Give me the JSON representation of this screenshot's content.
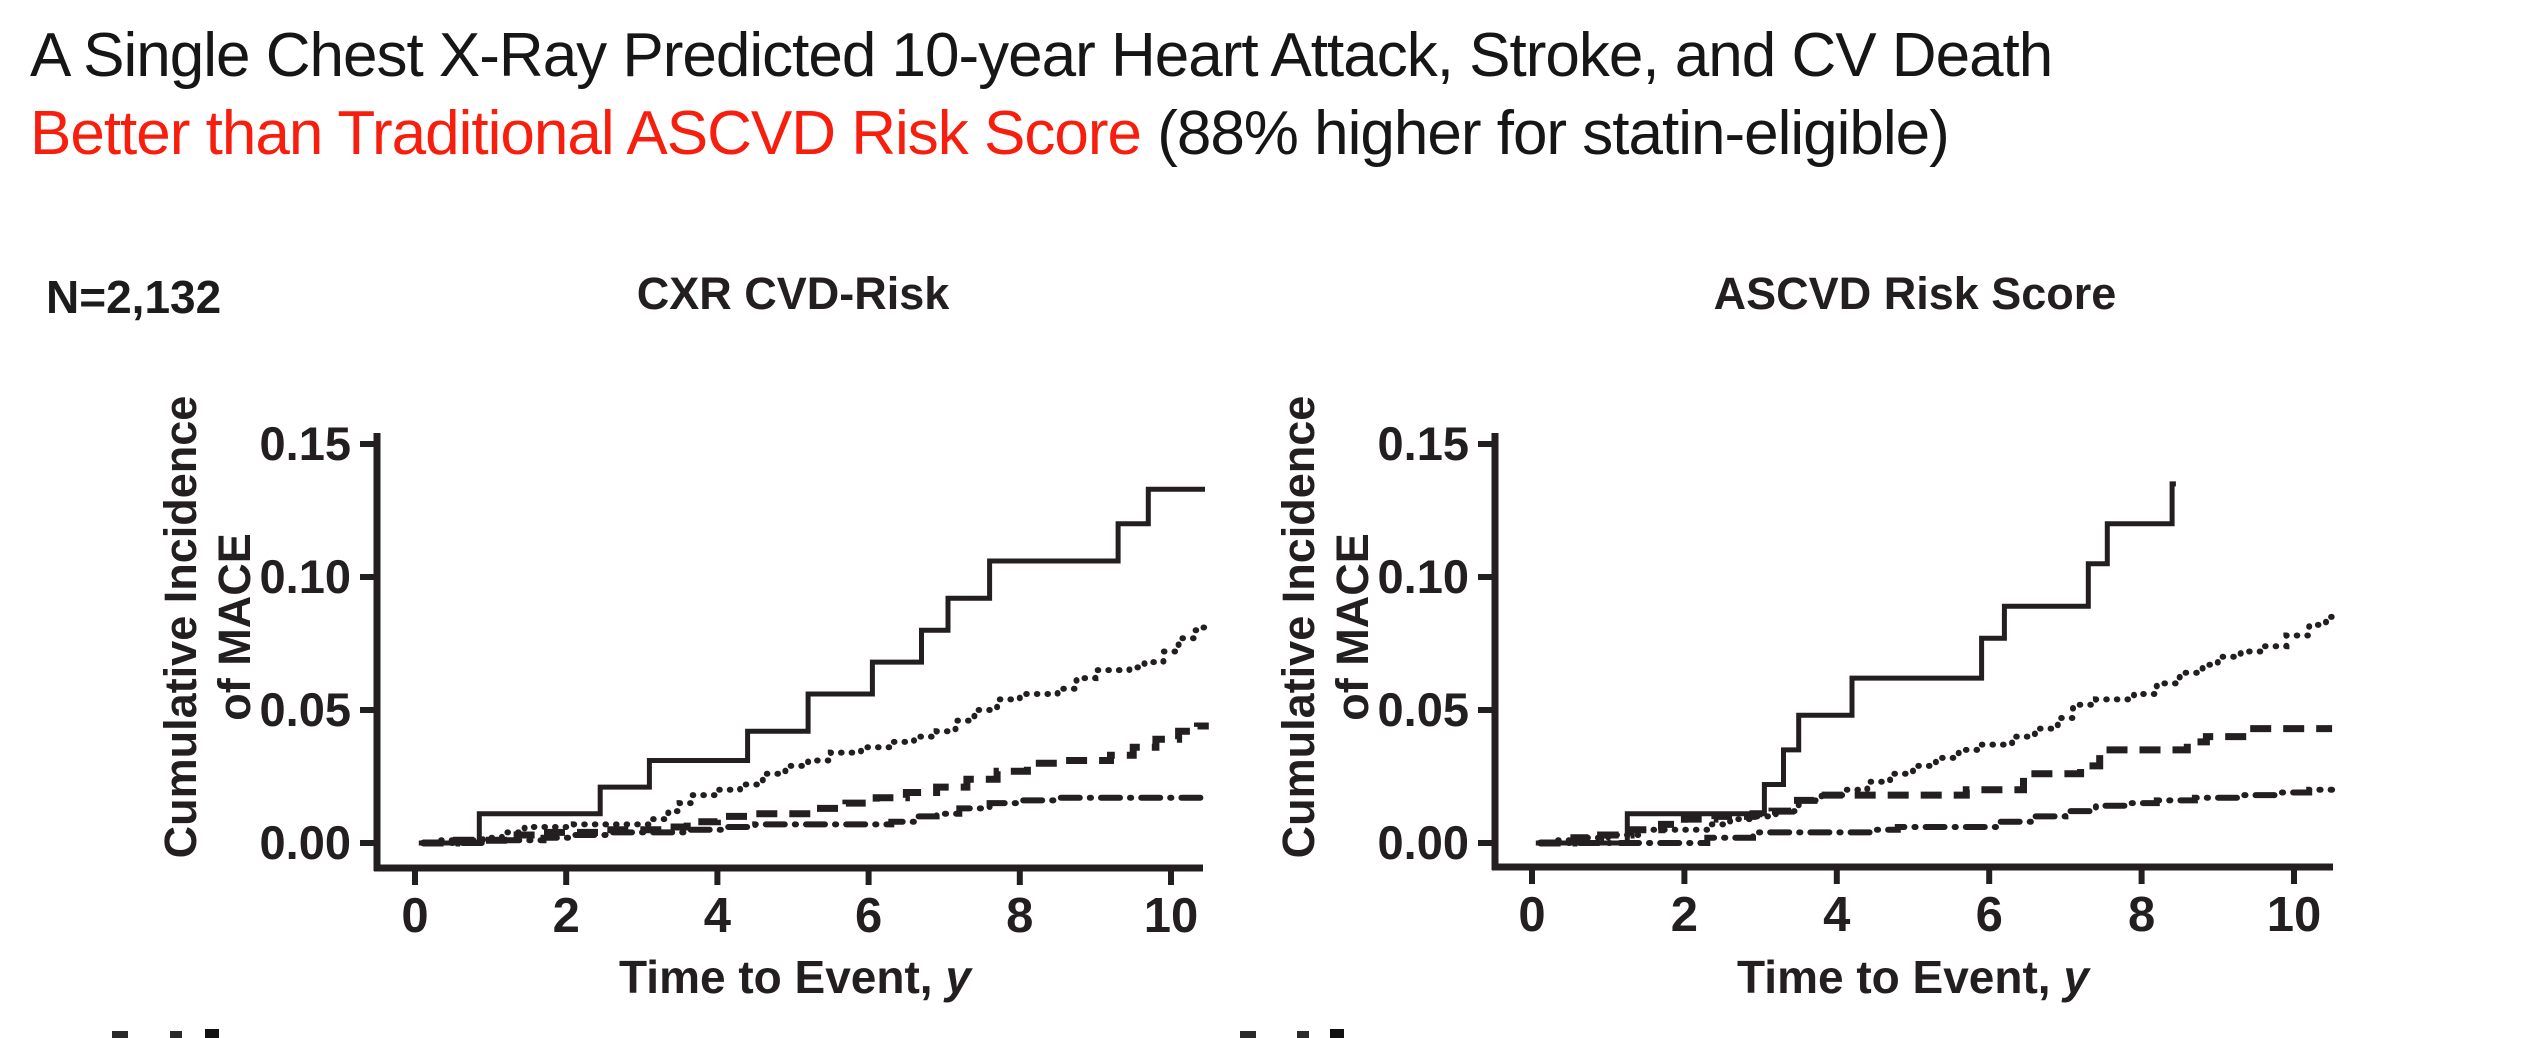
{
  "header": {
    "title_line1": "A Single Chest X-Ray Predicted 10-year Heart Attack, Stroke, and CV Death",
    "title_line2_emphasis": "Better than Traditional ASCVD Risk Score",
    "title_line2_rest": " (88% higher for statin-eligible)",
    "emphasis_color": "#f81e0e",
    "text_color": "#161616"
  },
  "sample_size_label": "N=2,132",
  "line_color": "#231f20",
  "chart_data": [
    {
      "type": "line",
      "subtype": "cumulative-incidence-step",
      "title": "CXR CVD-Risk",
      "ylabel": "Cumulative Incidence\nof MACE",
      "xlabel_main": "Time to Event, ",
      "xlabel_italic": "y",
      "xlim": [
        0,
        10.5
      ],
      "ylim": [
        0,
        0.155
      ],
      "x_ticks": [
        0,
        2,
        4,
        6,
        8,
        10
      ],
      "y_ticks": [
        [
          "0.00",
          0
        ],
        [
          "0.05",
          0.05
        ],
        [
          "0.10",
          0.1
        ],
        [
          "0.15",
          0.15
        ]
      ],
      "grid": false,
      "series": [
        {
          "id": "risk-q4-solid",
          "line": "solid",
          "t_start": 0.05,
          "t_end": 10.45,
          "points": [
            [
              0.85,
              0.011
            ],
            [
              2.45,
              0.021
            ],
            [
              3.1,
              0.031
            ],
            [
              4.4,
              0.042
            ],
            [
              5.2,
              0.056
            ],
            [
              6.05,
              0.068
            ],
            [
              6.7,
              0.08
            ],
            [
              7.05,
              0.092
            ],
            [
              7.6,
              0.106
            ],
            [
              9.3,
              0.12
            ],
            [
              9.7,
              0.133
            ]
          ]
        },
        {
          "id": "risk-q3-dotted",
          "line": "dotted",
          "t_start": 0.1,
          "t_end": 10.5,
          "points": [
            [
              0.3,
              0.001
            ],
            [
              0.9,
              0.002
            ],
            [
              1.15,
              0.004
            ],
            [
              1.45,
              0.006
            ],
            [
              2.1,
              0.007
            ],
            [
              3.15,
              0.009
            ],
            [
              3.35,
              0.012
            ],
            [
              3.5,
              0.015
            ],
            [
              3.65,
              0.018
            ],
            [
              4.0,
              0.02
            ],
            [
              4.3,
              0.022
            ],
            [
              4.6,
              0.026
            ],
            [
              4.9,
              0.029
            ],
            [
              5.2,
              0.031
            ],
            [
              5.5,
              0.034
            ],
            [
              5.9,
              0.036
            ],
            [
              6.3,
              0.038
            ],
            [
              6.6,
              0.04
            ],
            [
              6.9,
              0.042
            ],
            [
              7.15,
              0.046
            ],
            [
              7.4,
              0.05
            ],
            [
              7.7,
              0.054
            ],
            [
              8.0,
              0.056
            ],
            [
              8.5,
              0.058
            ],
            [
              8.75,
              0.062
            ],
            [
              9.0,
              0.065
            ],
            [
              9.45,
              0.066
            ],
            [
              9.65,
              0.068
            ],
            [
              9.9,
              0.072
            ],
            [
              10.1,
              0.077
            ],
            [
              10.3,
              0.08
            ],
            [
              10.42,
              0.081
            ]
          ]
        },
        {
          "id": "risk-q2-dashed",
          "line": "dashed",
          "t_start": 0.1,
          "t_end": 10.5,
          "points": [
            [
              0.55,
              0.001
            ],
            [
              1.3,
              0.003
            ],
            [
              1.65,
              0.004
            ],
            [
              2.5,
              0.005
            ],
            [
              3.3,
              0.006
            ],
            [
              3.6,
              0.008
            ],
            [
              4.0,
              0.01
            ],
            [
              4.45,
              0.011
            ],
            [
              5.3,
              0.013
            ],
            [
              5.7,
              0.015
            ],
            [
              6.1,
              0.017
            ],
            [
              6.5,
              0.019
            ],
            [
              6.9,
              0.021
            ],
            [
              7.3,
              0.024
            ],
            [
              7.7,
              0.027
            ],
            [
              8.1,
              0.03
            ],
            [
              8.6,
              0.031
            ],
            [
              9.2,
              0.033
            ],
            [
              9.5,
              0.036
            ],
            [
              9.8,
              0.039
            ],
            [
              10.1,
              0.042
            ],
            [
              10.35,
              0.044
            ]
          ]
        },
        {
          "id": "risk-q1-dashdot",
          "line": "dashdot",
          "t_start": 0.1,
          "t_end": 10.5,
          "points": [
            [
              0.95,
              0.001
            ],
            [
              1.7,
              0.002
            ],
            [
              2.1,
              0.003
            ],
            [
              2.55,
              0.004
            ],
            [
              3.55,
              0.005
            ],
            [
              4.1,
              0.006
            ],
            [
              4.5,
              0.007
            ],
            [
              6.3,
              0.008
            ],
            [
              6.6,
              0.01
            ],
            [
              6.9,
              0.011
            ],
            [
              7.2,
              0.013
            ],
            [
              7.6,
              0.015
            ],
            [
              8.0,
              0.016
            ],
            [
              8.5,
              0.017
            ]
          ]
        }
      ]
    },
    {
      "type": "line",
      "subtype": "cumulative-incidence-step",
      "title": "ASCVD Risk Score",
      "ylabel": "Cumulative Incidence\nof MACE",
      "xlabel_main": "Time to Event, ",
      "xlabel_italic": "y",
      "xlim": [
        0,
        10.5
      ],
      "ylim": [
        0,
        0.155
      ],
      "x_ticks": [
        0,
        2,
        4,
        6,
        8,
        10
      ],
      "y_ticks": [
        [
          "0.00",
          0
        ],
        [
          "0.05",
          0.05
        ],
        [
          "0.10",
          0.1
        ],
        [
          "0.15",
          0.15
        ]
      ],
      "grid": false,
      "series": [
        {
          "id": "risk-q4-solid",
          "line": "solid",
          "t_start": 0.05,
          "t_end": 8.45,
          "points": [
            [
              1.25,
              0.011
            ],
            [
              3.05,
              0.022
            ],
            [
              3.3,
              0.035
            ],
            [
              3.5,
              0.048
            ],
            [
              4.2,
              0.062
            ],
            [
              5.9,
              0.077
            ],
            [
              6.2,
              0.089
            ],
            [
              7.3,
              0.105
            ],
            [
              7.55,
              0.12
            ],
            [
              8.4,
              0.135
            ]
          ]
        },
        {
          "id": "risk-q3-dotted",
          "line": "dotted",
          "t_start": 0.1,
          "t_end": 10.5,
          "points": [
            [
              0.25,
              0.001
            ],
            [
              0.6,
              0.002
            ],
            [
              1.0,
              0.003
            ],
            [
              1.4,
              0.005
            ],
            [
              2.3,
              0.007
            ],
            [
              2.6,
              0.009
            ],
            [
              2.9,
              0.01
            ],
            [
              3.2,
              0.012
            ],
            [
              3.5,
              0.016
            ],
            [
              3.8,
              0.018
            ],
            [
              4.1,
              0.02
            ],
            [
              4.4,
              0.023
            ],
            [
              4.7,
              0.026
            ],
            [
              5.0,
              0.029
            ],
            [
              5.3,
              0.032
            ],
            [
              5.6,
              0.035
            ],
            [
              5.9,
              0.037
            ],
            [
              6.3,
              0.04
            ],
            [
              6.6,
              0.043
            ],
            [
              6.9,
              0.047
            ],
            [
              7.1,
              0.052
            ],
            [
              7.4,
              0.054
            ],
            [
              7.9,
              0.056
            ],
            [
              8.2,
              0.06
            ],
            [
              8.5,
              0.064
            ],
            [
              8.8,
              0.067
            ],
            [
              9.0,
              0.07
            ],
            [
              9.3,
              0.072
            ],
            [
              9.6,
              0.074
            ],
            [
              9.9,
              0.078
            ],
            [
              10.2,
              0.082
            ],
            [
              10.42,
              0.085
            ]
          ]
        },
        {
          "id": "risk-q2-dashed",
          "line": "dashed",
          "t_start": 0.1,
          "t_end": 10.5,
          "points": [
            [
              0.55,
              0.002
            ],
            [
              0.9,
              0.003
            ],
            [
              1.3,
              0.005
            ],
            [
              1.7,
              0.007
            ],
            [
              2.0,
              0.009
            ],
            [
              2.4,
              0.01
            ],
            [
              2.9,
              0.011
            ],
            [
              3.15,
              0.012
            ],
            [
              3.4,
              0.016
            ],
            [
              3.7,
              0.018
            ],
            [
              5.7,
              0.02
            ],
            [
              6.45,
              0.026
            ],
            [
              7.2,
              0.029
            ],
            [
              7.45,
              0.035
            ],
            [
              8.6,
              0.038
            ],
            [
              8.85,
              0.04
            ],
            [
              9.4,
              0.043
            ]
          ]
        },
        {
          "id": "risk-q1-dashdot",
          "line": "dashdot",
          "t_start": 0.1,
          "t_end": 10.5,
          "points": [
            [
              2.3,
              0.002
            ],
            [
              2.9,
              0.004
            ],
            [
              4.5,
              0.005
            ],
            [
              4.8,
              0.006
            ],
            [
              6.15,
              0.008
            ],
            [
              6.55,
              0.01
            ],
            [
              7.0,
              0.012
            ],
            [
              7.4,
              0.014
            ],
            [
              7.8,
              0.015
            ],
            [
              8.2,
              0.016
            ],
            [
              8.7,
              0.017
            ],
            [
              9.3,
              0.018
            ],
            [
              9.8,
              0.019
            ],
            [
              10.2,
              0.02
            ]
          ]
        }
      ]
    }
  ]
}
